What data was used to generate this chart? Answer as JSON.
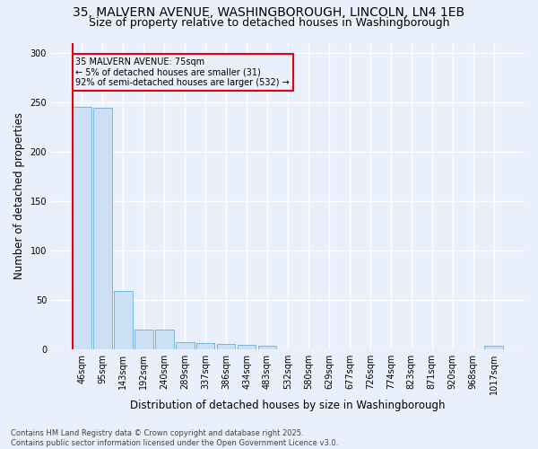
{
  "title_line1": "35, MALVERN AVENUE, WASHINGBOROUGH, LINCOLN, LN4 1EB",
  "title_line2": "Size of property relative to detached houses in Washingborough",
  "xlabel": "Distribution of detached houses by size in Washingborough",
  "ylabel": "Number of detached properties",
  "bar_labels": [
    "46sqm",
    "95sqm",
    "143sqm",
    "192sqm",
    "240sqm",
    "289sqm",
    "337sqm",
    "386sqm",
    "434sqm",
    "483sqm",
    "532sqm",
    "580sqm",
    "629sqm",
    "677sqm",
    "726sqm",
    "774sqm",
    "823sqm",
    "871sqm",
    "920sqm",
    "968sqm",
    "1017sqm"
  ],
  "bar_values": [
    245,
    244,
    59,
    20,
    20,
    7,
    6,
    5,
    4,
    3,
    0,
    0,
    0,
    0,
    0,
    0,
    0,
    0,
    0,
    0,
    3
  ],
  "bar_color": "#cce0f5",
  "bar_edge_color": "#6aaed6",
  "highlight_color": "#e8000d",
  "annotation_text": "35 MALVERN AVENUE: 75sqm\n← 5% of detached houses are smaller (31)\n92% of semi-detached houses are larger (532) →",
  "ylim": [
    0,
    310
  ],
  "yticks": [
    0,
    50,
    100,
    150,
    200,
    250,
    300
  ],
  "background_color": "#eaf0fb",
  "grid_color": "#ffffff",
  "footer_text": "Contains HM Land Registry data © Crown copyright and database right 2025.\nContains public sector information licensed under the Open Government Licence v3.0.",
  "title_fontsize": 10,
  "subtitle_fontsize": 9,
  "tick_fontsize": 7,
  "label_fontsize": 8.5,
  "footer_fontsize": 6
}
